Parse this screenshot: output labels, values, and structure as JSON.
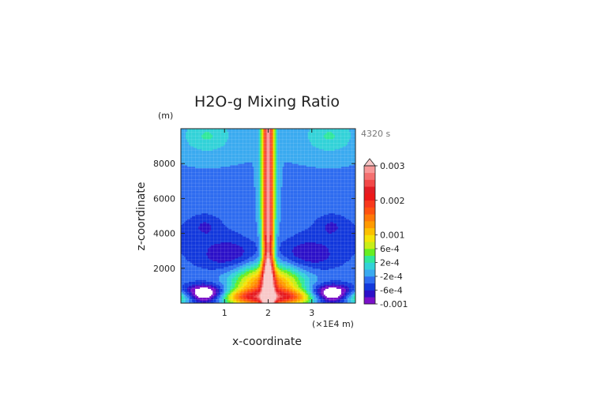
{
  "chart_data": {
    "type": "heatmap",
    "title": "H2O-g Mixing Ratio",
    "xlabel": "x-coordinate",
    "ylabel": "z-coordinate",
    "x_unit_label": "(×1E4 m)",
    "y_unit_label": "(m)",
    "time_label": "4320 s",
    "xlim": [
      0,
      4
    ],
    "ylim": [
      0,
      10000
    ],
    "x_ticks": [
      1,
      2,
      3
    ],
    "x_tick_labels": [
      "1",
      "2",
      "3"
    ],
    "y_ticks": [
      2000,
      4000,
      6000,
      8000
    ],
    "y_tick_labels": [
      "2000",
      "4000",
      "6000",
      "8000"
    ],
    "grid": true,
    "colorbar": {
      "levels": [
        -0.001,
        -0.0008,
        -0.0006,
        -0.0004,
        -0.0002,
        0,
        0.0002,
        0.0004,
        0.0006,
        0.0008,
        0.001,
        0.0012,
        0.0014,
        0.0016,
        0.0018,
        0.002,
        0.0022,
        0.0024,
        0.0026,
        0.0028,
        0.003
      ],
      "tick_values": [
        0.003,
        0.002,
        0.001,
        0.0006,
        0.0002,
        -0.0002,
        -0.0006,
        -0.001
      ],
      "tick_labels": [
        "0.003",
        "0.002",
        "0.001",
        "6e-4",
        "2e-4",
        "-2e-4",
        "-6e-4",
        "-0.001"
      ],
      "colors": [
        "#7a10c8",
        "#2c10c8",
        "#1238dc",
        "#2e6cf0",
        "#3aaaf0",
        "#32d2d8",
        "#30e89a",
        "#66ee22",
        "#c8ee18",
        "#f4e408",
        "#fcc000",
        "#ff9a00",
        "#ff7808",
        "#ff5210",
        "#f8381c",
        "#ec1818",
        "#e21c24",
        "#f24848",
        "#f47070",
        "#f89898"
      ],
      "extend_color": "#f8c8c8",
      "negative_extreme_color": "#ffffff"
    },
    "features": [
      {
        "name": "central plume",
        "x_center": 2.0,
        "z_top": 10000,
        "value": 0.0022
      },
      {
        "name": "near-surface moist layer",
        "z_range": [
          0,
          600
        ],
        "value": 0.0015
      },
      {
        "name": "dry pocket left",
        "x_center": 0.55,
        "z_center": 250,
        "value": -0.0012
      },
      {
        "name": "dry pocket right",
        "x_center": 3.45,
        "z_center": 250,
        "value": -0.0012
      },
      {
        "name": "dry mid-level region",
        "z_range": [
          1500,
          3500
        ],
        "value": -0.0008
      },
      {
        "name": "moist upper pockets",
        "x_centers": [
          0.55,
          3.45
        ],
        "z_range": [
          8700,
          10000
        ],
        "value": 0.0001
      }
    ]
  }
}
